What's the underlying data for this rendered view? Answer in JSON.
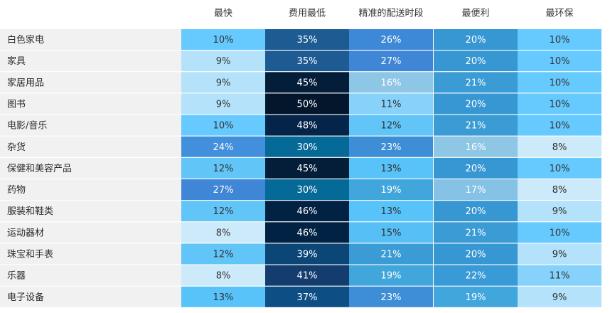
{
  "chart_data": {
    "type": "heatmap",
    "title": "",
    "columns": [
      "最快",
      "费用最低",
      "精准的配送时段",
      "最便利",
      "最环保"
    ],
    "rows": [
      "白色家电",
      "家具",
      "家居用品",
      "图书",
      "电影/音乐",
      "杂货",
      "保健和美容产品",
      "药物",
      "服装和鞋类",
      "运动器材",
      "珠宝和手表",
      "乐器",
      "电子设备"
    ],
    "values": [
      [
        10,
        35,
        26,
        20,
        10
      ],
      [
        9,
        35,
        27,
        20,
        10
      ],
      [
        9,
        45,
        16,
        21,
        10
      ],
      [
        9,
        50,
        11,
        20,
        10
      ],
      [
        10,
        48,
        12,
        21,
        10
      ],
      [
        24,
        30,
        23,
        16,
        8
      ],
      [
        12,
        45,
        13,
        20,
        10
      ],
      [
        27,
        30,
        19,
        17,
        8
      ],
      [
        12,
        46,
        13,
        20,
        9
      ],
      [
        8,
        46,
        15,
        21,
        10
      ],
      [
        12,
        39,
        21,
        20,
        9
      ],
      [
        8,
        41,
        19,
        22,
        11
      ],
      [
        13,
        37,
        23,
        19,
        9
      ]
    ],
    "value_suffix": "%"
  },
  "colors": {
    "c8": "#cdeafa",
    "c9": "#b5e2fb",
    "c10": "#66caff",
    "c11": "#86d2fa",
    "c12": "#61c5f8",
    "c13": "#57c3f9",
    "c15": "#56bff6",
    "c16": "#8ec6e6",
    "c17": "#86c2e5",
    "c19": "#40a6db",
    "c20": "#3797d2",
    "c21": "#3b9bd4",
    "c22": "#389ad6",
    "c23": "#3d8ed6",
    "c24": "#428fdb",
    "c26": "#3e88d8",
    "c27": "#3f86d6",
    "c30": "#066a99",
    "c35": "#1d5b92",
    "c37": "#0d4e85",
    "c39": "#0b4676",
    "c41": "#143c6e",
    "c45": "#041e3a",
    "c46": "#022244",
    "c48": "#042449",
    "c50": "#03162c",
    "text_dark": "#333333",
    "text_light": "#ffffff",
    "band": "#f1f1f1"
  }
}
